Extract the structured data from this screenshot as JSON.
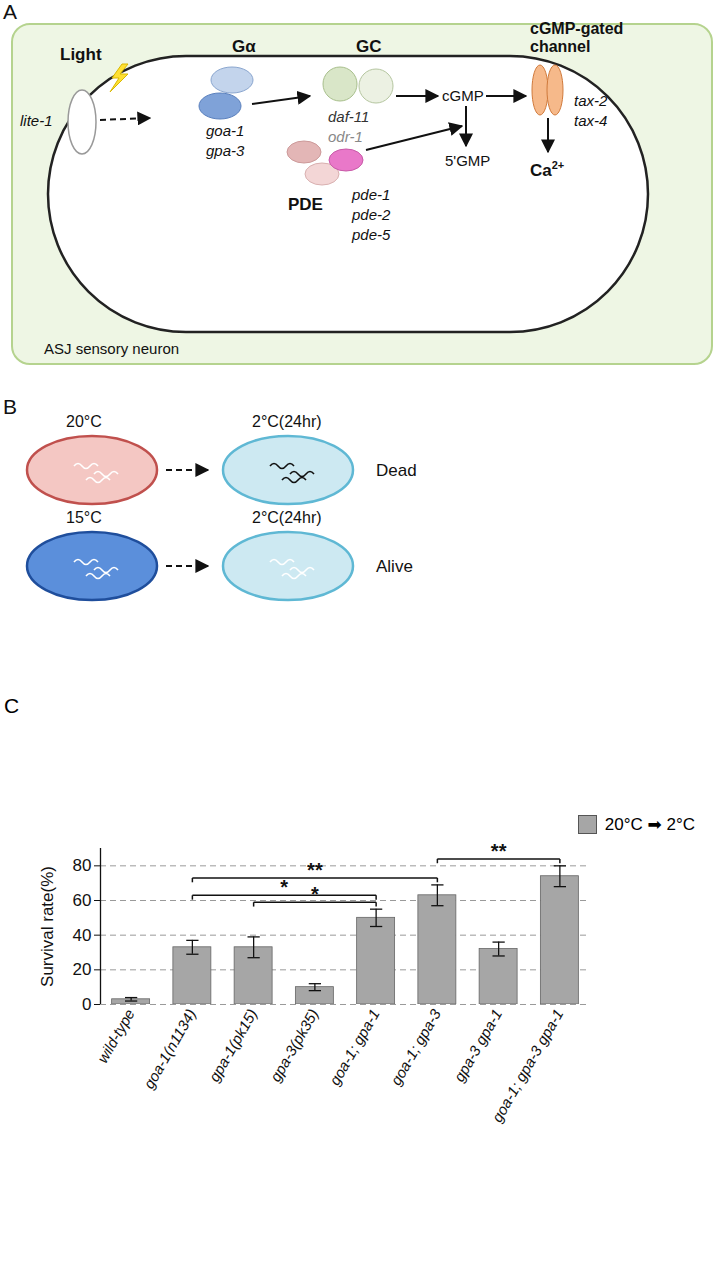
{
  "diagram": {
    "panel_a": {
      "label": "A",
      "light": "Light",
      "receptor": "lite-1",
      "galpha": {
        "title": "Gα",
        "genes": [
          "goa-1",
          "gpa-3"
        ]
      },
      "gc": {
        "title": "GC",
        "genes": [
          "daf-11",
          "odr-1"
        ]
      },
      "cgmp": "cGMP",
      "gmp": "5'GMP",
      "pde": {
        "title": "PDE",
        "genes": [
          "pde-1",
          "pde-2",
          "pde-5"
        ]
      },
      "channel": {
        "title": [
          "cGMP-gated",
          "channel"
        ],
        "genes": [
          "tax-2",
          "tax-4"
        ]
      },
      "ion": {
        "base": "Ca",
        "sup": "2+"
      },
      "cell": "ASJ sensory neuron"
    },
    "panel_b": {
      "label": "B",
      "rows": [
        {
          "from": "20°C",
          "to": "2°C(24hr)",
          "outcome": "Dead"
        },
        {
          "from": "15°C",
          "to": "2°C(24hr)",
          "outcome": "Alive"
        }
      ]
    },
    "panel_c": {
      "label": "C"
    }
  },
  "chart_data": {
    "type": "bar",
    "ylabel": "Survival rate(%)",
    "categories": [
      "wild-type",
      "goa-1(n1134)",
      "gpa-1(pk15)",
      "gpa-3(pk35)",
      "goa-1; gpa-1",
      "goa-1; gpa-3",
      "gpa-3 gpa-1",
      "goa-1; gpa-3 gpa-1"
    ],
    "series": [
      {
        "name": "20°C ➡ 2°C",
        "color": "#a6a6a6",
        "values": [
          3,
          33,
          33,
          10,
          50,
          63,
          32,
          74
        ],
        "errors": [
          1,
          4,
          6,
          2,
          5,
          6,
          4,
          6
        ]
      }
    ],
    "ylim": [
      0,
      90
    ],
    "yticks": [
      0,
      20,
      40,
      60,
      80
    ],
    "grid": true,
    "legend": "top-right",
    "annotations": [
      {
        "text": "**",
        "from": "goa-1(n1134)",
        "to": "goa-1; gpa-3"
      },
      {
        "text": "*",
        "from": "goa-1(n1134)",
        "to": "goa-1; gpa-1"
      },
      {
        "text": "*",
        "from": "gpa-1(pk15)",
        "to": "goa-1; gpa-1"
      },
      {
        "text": "**",
        "from": "goa-1; gpa-3",
        "to": "goa-1; gpa-3 gpa-1"
      }
    ]
  }
}
